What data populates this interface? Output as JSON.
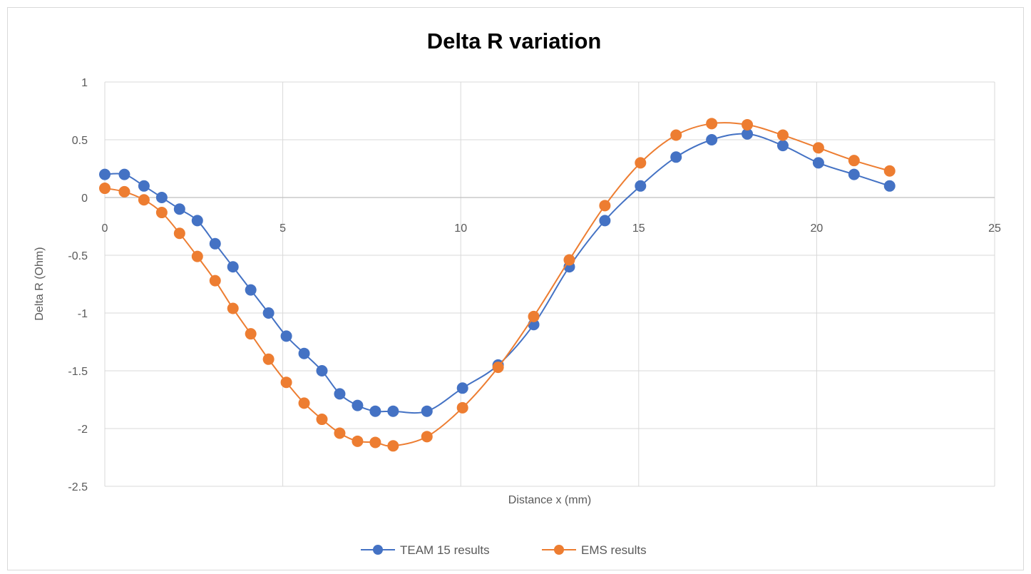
{
  "chart_data": {
    "type": "line",
    "title": "Delta R variation",
    "xlabel": "Distance x (mm)",
    "ylabel": "Delta R (Ohm)",
    "xlim": [
      0,
      25
    ],
    "ylim": [
      -2.5,
      1
    ],
    "x_ticks": [
      0,
      5,
      10,
      15,
      20,
      25
    ],
    "y_ticks": [
      1,
      0.5,
      0,
      -0.5,
      -1,
      -1.5,
      -2,
      -2.5
    ],
    "x_tick_labels": [
      "0",
      "5",
      "10",
      "15",
      "20",
      "25"
    ],
    "y_tick_labels": [
      "1",
      "0.5",
      "0",
      "-0.5",
      "-1",
      "-1.5",
      "-2",
      "-2.5"
    ],
    "grid": true,
    "legend_position": "bottom",
    "series": [
      {
        "name": "TEAM 15 results",
        "color": "#4472c4",
        "x": [
          0,
          0.55,
          1.1,
          1.6,
          2.1,
          2.6,
          3.1,
          3.6,
          4.1,
          4.6,
          5.1,
          5.6,
          6.1,
          6.6,
          7.1,
          7.6,
          8.1,
          9.05,
          10.05,
          11.05,
          12.05,
          13.05,
          14.05,
          15.05,
          16.05,
          17.05,
          18.05,
          19.05,
          20.05,
          21.05,
          22.05
        ],
        "y": [
          0.2,
          0.2,
          0.1,
          0,
          -0.1,
          -0.2,
          -0.4,
          -0.6,
          -0.8,
          -1.0,
          -1.2,
          -1.35,
          -1.5,
          -1.7,
          -1.8,
          -1.85,
          -1.85,
          -1.85,
          -1.65,
          -1.45,
          -1.1,
          -0.6,
          -0.2,
          0.1,
          0.35,
          0.5,
          0.55,
          0.45,
          0.3,
          0.2,
          0.1
        ]
      },
      {
        "name": "EMS results",
        "color": "#ed7d31",
        "x": [
          0,
          0.55,
          1.1,
          1.6,
          2.1,
          2.6,
          3.1,
          3.6,
          4.1,
          4.6,
          5.1,
          5.6,
          6.1,
          6.6,
          7.1,
          7.6,
          8.1,
          9.05,
          10.05,
          11.05,
          12.05,
          13.05,
          14.05,
          15.05,
          16.05,
          17.05,
          18.05,
          19.05,
          20.05,
          21.05,
          22.05
        ],
        "y": [
          0.08,
          0.05,
          -0.02,
          -0.13,
          -0.31,
          -0.51,
          -0.72,
          -0.96,
          -1.18,
          -1.4,
          -1.6,
          -1.78,
          -1.92,
          -2.04,
          -2.11,
          -2.12,
          -2.15,
          -2.07,
          -1.82,
          -1.47,
          -1.03,
          -0.54,
          -0.07,
          0.3,
          0.54,
          0.64,
          0.63,
          0.54,
          0.43,
          0.32,
          0.23
        ]
      }
    ]
  }
}
